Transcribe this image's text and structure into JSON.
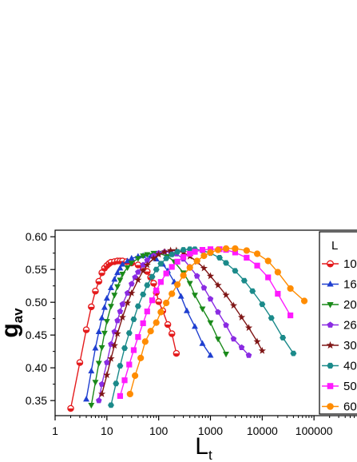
{
  "chart_data": {
    "type": "scatter",
    "title": "",
    "xlabel": "L",
    "xlabel_sub": "t",
    "ylabel": "g",
    "ylabel_sub": "av",
    "xscale": "log",
    "xlim": [
      1,
      1000000
    ],
    "ylim": [
      0.327,
      0.61
    ],
    "xticks": [
      1,
      10,
      100,
      1000,
      10000,
      100000
    ],
    "xtick_labels": [
      "1",
      "10",
      "100",
      "1000",
      "10000",
      "100000"
    ],
    "yticks": [
      0.35,
      0.4,
      0.45,
      0.5,
      0.55,
      0.6
    ],
    "ytick_labels": [
      "0.35",
      "0.40",
      "0.45",
      "0.50",
      "0.55",
      "0.60"
    ],
    "grid": false,
    "legend": {
      "title": "L",
      "position": "right (partially cropped)"
    },
    "series": [
      {
        "name": "10",
        "color": "#e41a1c",
        "marker": "half-circle",
        "x": [
          2,
          3,
          4,
          5,
          6,
          7,
          8,
          9,
          10,
          11,
          12,
          14,
          16,
          18,
          20,
          24,
          30,
          40,
          50,
          60,
          70,
          80,
          90,
          100,
          120,
          150,
          180,
          220
        ],
        "y": [
          0.338,
          0.408,
          0.458,
          0.493,
          0.517,
          0.532,
          0.545,
          0.552,
          0.556,
          0.559,
          0.561,
          0.562,
          0.563,
          0.563,
          0.563,
          0.562,
          0.56,
          0.557,
          0.552,
          0.547,
          0.538,
          0.529,
          0.515,
          0.501,
          0.487,
          0.466,
          0.452,
          0.422
        ]
      },
      {
        "name": "16",
        "color": "#1f3fd0",
        "marker": "triangle-up",
        "x": [
          4,
          5,
          6,
          7,
          8,
          9,
          10,
          12,
          14,
          16,
          18,
          20,
          25,
          30,
          40,
          50,
          70,
          90,
          120,
          150,
          200,
          270,
          350,
          500,
          700,
          1000
        ],
        "y": [
          0.352,
          0.395,
          0.43,
          0.455,
          0.476,
          0.492,
          0.506,
          0.522,
          0.535,
          0.545,
          0.552,
          0.558,
          0.563,
          0.567,
          0.57,
          0.571,
          0.57,
          0.566,
          0.558,
          0.548,
          0.531,
          0.509,
          0.487,
          0.463,
          0.437,
          0.419
        ]
      },
      {
        "name": "20",
        "color": "#1a8a1a",
        "marker": "triangle-down",
        "x": [
          5,
          6,
          7,
          8,
          9,
          10,
          12,
          14,
          16,
          18,
          20,
          25,
          30,
          40,
          50,
          60,
          80,
          100,
          150,
          200,
          300,
          400,
          500,
          700,
          1000,
          1400,
          2000
        ],
        "y": [
          0.343,
          0.378,
          0.407,
          0.431,
          0.453,
          0.471,
          0.494,
          0.511,
          0.524,
          0.534,
          0.543,
          0.553,
          0.56,
          0.567,
          0.571,
          0.573,
          0.575,
          0.575,
          0.57,
          0.562,
          0.545,
          0.529,
          0.511,
          0.49,
          0.469,
          0.444,
          0.421
        ]
      },
      {
        "name": "26",
        "color": "#8a2be2",
        "marker": "pentagon",
        "x": [
          7,
          8,
          10,
          12,
          14,
          16,
          18,
          20,
          25,
          30,
          35,
          40,
          50,
          60,
          80,
          100,
          130,
          170,
          220,
          300,
          400,
          550,
          750,
          1000,
          1400,
          2000,
          2800,
          4000,
          5500
        ],
        "y": [
          0.35,
          0.375,
          0.408,
          0.436,
          0.455,
          0.472,
          0.486,
          0.497,
          0.514,
          0.528,
          0.538,
          0.546,
          0.557,
          0.564,
          0.571,
          0.575,
          0.577,
          0.577,
          0.574,
          0.566,
          0.554,
          0.54,
          0.522,
          0.505,
          0.485,
          0.465,
          0.444,
          0.431,
          0.419
        ]
      },
      {
        "name": "30",
        "color": "#7f1616",
        "marker": "star",
        "x": [
          8,
          10,
          12,
          14,
          16,
          20,
          25,
          30,
          40,
          50,
          60,
          80,
          100,
          130,
          170,
          220,
          300,
          400,
          550,
          750,
          1000,
          1400,
          2000,
          2800,
          4000,
          5500,
          8000,
          10000
        ],
        "y": [
          0.36,
          0.389,
          0.414,
          0.434,
          0.452,
          0.477,
          0.499,
          0.514,
          0.534,
          0.548,
          0.557,
          0.567,
          0.573,
          0.577,
          0.579,
          0.579,
          0.576,
          0.57,
          0.562,
          0.552,
          0.54,
          0.526,
          0.511,
          0.495,
          0.477,
          0.461,
          0.44,
          0.426
        ]
      },
      {
        "name": "40",
        "color": "#1b8a8a",
        "marker": "hexagon",
        "x": [
          12,
          15,
          18,
          22,
          27,
          33,
          40,
          50,
          60,
          75,
          90,
          110,
          140,
          180,
          230,
          300,
          400,
          500,
          700,
          1000,
          1500,
          2000,
          3000,
          4500,
          6500,
          10000,
          15000,
          25000,
          40000
        ],
        "y": [
          0.343,
          0.376,
          0.403,
          0.43,
          0.453,
          0.474,
          0.494,
          0.512,
          0.526,
          0.539,
          0.55,
          0.559,
          0.567,
          0.573,
          0.577,
          0.58,
          0.581,
          0.581,
          0.579,
          0.575,
          0.568,
          0.56,
          0.548,
          0.533,
          0.517,
          0.497,
          0.476,
          0.446,
          0.422
        ]
      },
      {
        "name": "50",
        "color": "#ff1aff",
        "marker": "square",
        "x": [
          18,
          22,
          27,
          33,
          40,
          50,
          60,
          75,
          90,
          110,
          140,
          180,
          230,
          300,
          400,
          500,
          700,
          1000,
          1500,
          2000,
          3000,
          5000,
          8000,
          13000,
          20000,
          35000
        ],
        "y": [
          0.357,
          0.381,
          0.405,
          0.427,
          0.447,
          0.468,
          0.486,
          0.503,
          0.518,
          0.531,
          0.544,
          0.554,
          0.562,
          0.569,
          0.574,
          0.577,
          0.58,
          0.581,
          0.581,
          0.58,
          0.576,
          0.568,
          0.556,
          0.538,
          0.513,
          0.48
        ]
      },
      {
        "name": "60",
        "color": "#ff8c00",
        "marker": "circle",
        "x": [
          28,
          35,
          45,
          55,
          70,
          90,
          110,
          140,
          180,
          230,
          300,
          400,
          550,
          750,
          1000,
          1400,
          2000,
          3000,
          5000,
          8000,
          13000,
          20000,
          35000,
          65000
        ],
        "y": [
          0.36,
          0.388,
          0.415,
          0.44,
          0.456,
          0.469,
          0.485,
          0.499,
          0.513,
          0.527,
          0.541,
          0.553,
          0.563,
          0.571,
          0.576,
          0.58,
          0.582,
          0.582,
          0.579,
          0.574,
          0.563,
          0.546,
          0.521,
          0.502
        ]
      }
    ]
  }
}
